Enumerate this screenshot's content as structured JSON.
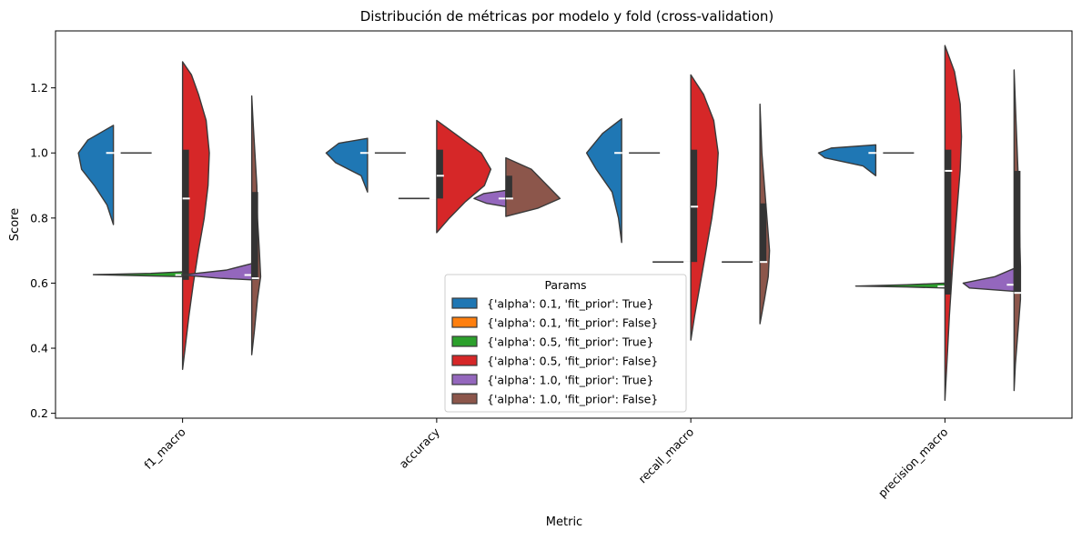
{
  "chart_data": {
    "type": "violin",
    "title": "Distribución de métricas por modelo y fold (cross-validation)",
    "xlabel": "Metric",
    "ylabel": "Score",
    "ylim": [
      0.185,
      1.375
    ],
    "yticks": [
      0.2,
      0.4,
      0.6,
      0.8,
      1.0,
      1.2
    ],
    "categories": [
      "f1_macro",
      "accuracy",
      "recall_macro",
      "precision_macro"
    ],
    "legend": {
      "title": "Params",
      "position": "bottom-center",
      "entries": [
        {
          "label": "{'alpha': 0.1, 'fit_prior': True}",
          "color": "#1f77b4"
        },
        {
          "label": "{'alpha': 0.1, 'fit_prior': False}",
          "color": "#ff7f0e"
        },
        {
          "label": "{'alpha': 0.5, 'fit_prior': True}",
          "color": "#2ca02c"
        },
        {
          "label": "{'alpha': 0.5, 'fit_prior': False}",
          "color": "#d62728"
        },
        {
          "label": "{'alpha': 1.0, 'fit_prior': True}",
          "color": "#9467bd"
        },
        {
          "label": "{'alpha': 1.0, 'fit_prior': False}",
          "color": "#8c564b"
        }
      ]
    },
    "series": [
      {
        "name": "{'alpha': 0.1, 'fit_prior': True}",
        "color": "#1f77b4",
        "side": "left",
        "violins": [
          {
            "category": "f1_macro",
            "median": 1.0,
            "q1": 1.0,
            "q3": 1.0,
            "range": [
              0.78,
              1.085
            ],
            "profile": [
              [
                0.78,
                0
              ],
              [
                0.84,
                0.01
              ],
              [
                0.9,
                0.03
              ],
              [
                0.95,
                0.05
              ],
              [
                1.0,
                0.055
              ],
              [
                1.04,
                0.04
              ],
              [
                1.085,
                0
              ]
            ]
          },
          {
            "category": "accuracy",
            "median": 1.0,
            "q1": 1.0,
            "q3": 1.0,
            "range": [
              0.88,
              1.045
            ],
            "profile": [
              [
                0.88,
                0
              ],
              [
                0.93,
                0.01
              ],
              [
                0.97,
                0.05
              ],
              [
                1.0,
                0.065
              ],
              [
                1.03,
                0.045
              ],
              [
                1.045,
                0
              ]
            ]
          },
          {
            "category": "recall_macro",
            "median": 1.0,
            "q1": 1.0,
            "q3": 1.0,
            "range": [
              0.725,
              1.105
            ],
            "profile": [
              [
                0.725,
                0
              ],
              [
                0.8,
                0.005
              ],
              [
                0.88,
                0.015
              ],
              [
                0.95,
                0.04
              ],
              [
                1.0,
                0.055
              ],
              [
                1.06,
                0.03
              ],
              [
                1.105,
                0
              ]
            ]
          },
          {
            "category": "precision_macro",
            "median": 1.0,
            "q1": 1.0,
            "q3": 1.0,
            "range": [
              0.93,
              1.025
            ],
            "profile": [
              [
                0.93,
                0
              ],
              [
                0.96,
                0.02
              ],
              [
                0.985,
                0.08
              ],
              [
                1.0,
                0.09
              ],
              [
                1.015,
                0.07
              ],
              [
                1.025,
                0
              ]
            ]
          }
        ]
      },
      {
        "name": "{'alpha': 0.1, 'fit_prior': False}",
        "color": "#ff7f0e",
        "side": "right",
        "violins": [
          {
            "category": "f1_macro",
            "median": 1.0,
            "q1": 1.0,
            "q3": 1.0,
            "range": [
              1.0,
              1.0
            ],
            "profile": []
          },
          {
            "category": "accuracy",
            "median": 1.0,
            "q1": 1.0,
            "q3": 1.0,
            "range": [
              1.0,
              1.0
            ],
            "profile": []
          },
          {
            "category": "recall_macro",
            "median": 1.0,
            "q1": 1.0,
            "q3": 1.0,
            "range": [
              1.0,
              1.0
            ],
            "profile": []
          },
          {
            "category": "precision_macro",
            "median": 1.0,
            "q1": 1.0,
            "q3": 1.0,
            "range": [
              1.0,
              1.0
            ],
            "profile": []
          }
        ]
      },
      {
        "name": "{'alpha': 0.5, 'fit_prior': True}",
        "color": "#2ca02c",
        "side": "left",
        "violins": [
          {
            "category": "f1_macro",
            "median": 0.625,
            "q1": 0.625,
            "q3": 0.625,
            "range": [
              0.62,
              0.635
            ],
            "profile": [
              [
                0.62,
                0
              ],
              [
                0.622,
                0.05
              ],
              [
                0.626,
                0.14
              ],
              [
                0.63,
                0.05
              ],
              [
                0.635,
                0
              ]
            ]
          },
          {
            "category": "accuracy",
            "median": 0.86,
            "q1": 0.86,
            "q3": 0.86,
            "range": [
              0.86,
              0.86
            ],
            "profile": []
          },
          {
            "category": "recall_macro",
            "median": 0.665,
            "q1": 0.665,
            "q3": 0.665,
            "range": [
              0.665,
              0.665
            ],
            "profile": []
          },
          {
            "category": "precision_macro",
            "median": 0.59,
            "q1": 0.59,
            "q3": 0.59,
            "range": [
              0.585,
              0.6
            ],
            "profile": [
              [
                0.585,
                0
              ],
              [
                0.588,
                0.06
              ],
              [
                0.591,
                0.14
              ],
              [
                0.595,
                0.06
              ],
              [
                0.6,
                0
              ]
            ]
          }
        ]
      },
      {
        "name": "{'alpha': 0.5, 'fit_prior': False}",
        "color": "#d62728",
        "side": "right",
        "violins": [
          {
            "category": "f1_macro",
            "median": 0.86,
            "q1": 0.61,
            "q3": 1.01,
            "range": [
              0.335,
              1.28
            ],
            "profile": [
              [
                0.335,
                0
              ],
              [
                0.4,
                0.004
              ],
              [
                0.5,
                0.01
              ],
              [
                0.6,
                0.017
              ],
              [
                0.7,
                0.025
              ],
              [
                0.8,
                0.034
              ],
              [
                0.9,
                0.04
              ],
              [
                1.0,
                0.042
              ],
              [
                1.1,
                0.037
              ],
              [
                1.18,
                0.025
              ],
              [
                1.24,
                0.014
              ],
              [
                1.28,
                0
              ]
            ]
          },
          {
            "category": "accuracy",
            "median": 0.93,
            "q1": 0.86,
            "q3": 1.01,
            "range": [
              0.755,
              1.1
            ],
            "profile": [
              [
                0.755,
                0
              ],
              [
                0.8,
                0.02
              ],
              [
                0.85,
                0.045
              ],
              [
                0.9,
                0.075
              ],
              [
                0.95,
                0.085
              ],
              [
                1.0,
                0.07
              ],
              [
                1.05,
                0.035
              ],
              [
                1.1,
                0
              ]
            ]
          },
          {
            "category": "recall_macro",
            "median": 0.835,
            "q1": 0.665,
            "q3": 1.01,
            "range": [
              0.425,
              1.24
            ],
            "profile": [
              [
                0.425,
                0
              ],
              [
                0.5,
                0.006
              ],
              [
                0.6,
                0.015
              ],
              [
                0.7,
                0.024
              ],
              [
                0.8,
                0.033
              ],
              [
                0.9,
                0.04
              ],
              [
                1.0,
                0.043
              ],
              [
                1.1,
                0.036
              ],
              [
                1.18,
                0.02
              ],
              [
                1.24,
                0
              ]
            ]
          },
          {
            "category": "precision_macro",
            "median": 0.945,
            "q1": 0.565,
            "q3": 1.01,
            "range": [
              0.24,
              1.33
            ],
            "profile": [
              [
                0.24,
                0
              ],
              [
                0.35,
                0.003
              ],
              [
                0.5,
                0.007
              ],
              [
                0.65,
                0.012
              ],
              [
                0.8,
                0.018
              ],
              [
                0.95,
                0.024
              ],
              [
                1.05,
                0.026
              ],
              [
                1.15,
                0.024
              ],
              [
                1.25,
                0.015
              ],
              [
                1.33,
                0
              ]
            ]
          }
        ]
      },
      {
        "name": "{'alpha': 1.0, 'fit_prior': True}",
        "color": "#9467bd",
        "side": "left",
        "violins": [
          {
            "category": "f1_macro",
            "median": 0.625,
            "q1": 0.625,
            "q3": 0.625,
            "range": [
              0.61,
              0.66
            ],
            "profile": [
              [
                0.61,
                0
              ],
              [
                0.615,
                0.05
              ],
              [
                0.625,
                0.11
              ],
              [
                0.64,
                0.04
              ],
              [
                0.66,
                0
              ]
            ]
          },
          {
            "category": "accuracy",
            "median": 0.86,
            "q1": 0.86,
            "q3": 0.86,
            "range": [
              0.835,
              0.885
            ],
            "profile": [
              [
                0.835,
                0
              ],
              [
                0.845,
                0.03
              ],
              [
                0.86,
                0.05
              ],
              [
                0.875,
                0.035
              ],
              [
                0.885,
                0
              ]
            ]
          },
          {
            "category": "recall_macro",
            "median": 0.665,
            "q1": 0.665,
            "q3": 0.665,
            "range": [
              0.665,
              0.665
            ],
            "profile": []
          },
          {
            "category": "precision_macro",
            "median": 0.595,
            "q1": 0.595,
            "q3": 0.595,
            "range": [
              0.575,
              0.645
            ],
            "profile": [
              [
                0.575,
                0
              ],
              [
                0.585,
                0.07
              ],
              [
                0.6,
                0.08
              ],
              [
                0.62,
                0.03
              ],
              [
                0.645,
                0
              ]
            ]
          }
        ]
      },
      {
        "name": "{'alpha': 1.0, 'fit_prior': False}",
        "color": "#8c564b",
        "side": "right",
        "violins": [
          {
            "category": "f1_macro",
            "median": 0.615,
            "q1": 0.61,
            "q3": 0.88,
            "range": [
              0.38,
              1.175
            ],
            "profile": [
              [
                0.38,
                0
              ],
              [
                0.45,
                0.004
              ],
              [
                0.55,
                0.009
              ],
              [
                0.62,
                0.014
              ],
              [
                0.7,
                0.012
              ],
              [
                0.8,
                0.009
              ],
              [
                0.9,
                0.008
              ],
              [
                1.0,
                0.005
              ],
              [
                1.1,
                0.002
              ],
              [
                1.175,
                0
              ]
            ]
          },
          {
            "category": "accuracy",
            "median": 0.86,
            "q1": 0.86,
            "q3": 0.93,
            "range": [
              0.805,
              0.985
            ],
            "profile": [
              [
                0.805,
                0
              ],
              [
                0.83,
                0.05
              ],
              [
                0.86,
                0.085
              ],
              [
                0.9,
                0.065
              ],
              [
                0.95,
                0.04
              ],
              [
                0.985,
                0
              ]
            ]
          },
          {
            "category": "recall_macro",
            "median": 0.665,
            "q1": 0.665,
            "q3": 0.845,
            "range": [
              0.475,
              1.15
            ],
            "profile": [
              [
                0.475,
                0
              ],
              [
                0.55,
                0.007
              ],
              [
                0.62,
                0.013
              ],
              [
                0.7,
                0.015
              ],
              [
                0.8,
                0.011
              ],
              [
                0.9,
                0.007
              ],
              [
                1.0,
                0.003
              ],
              [
                1.15,
                0
              ]
            ]
          },
          {
            "category": "precision_macro",
            "median": 0.57,
            "q1": 0.57,
            "q3": 0.945,
            "range": [
              0.27,
              1.255
            ],
            "profile": [
              [
                0.27,
                0
              ],
              [
                0.35,
                0.002
              ],
              [
                0.45,
                0.006
              ],
              [
                0.55,
                0.01
              ],
              [
                0.65,
                0.01
              ],
              [
                0.8,
                0.008
              ],
              [
                0.95,
                0.006
              ],
              [
                1.1,
                0.003
              ],
              [
                1.255,
                0
              ]
            ]
          }
        ]
      }
    ]
  }
}
